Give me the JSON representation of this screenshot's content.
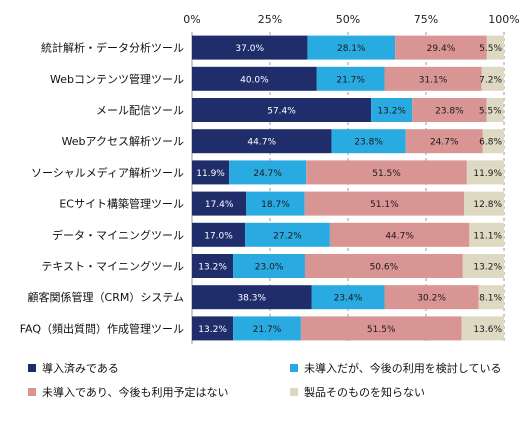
{
  "chart_data": {
    "type": "bar",
    "orientation": "horizontal",
    "stacked": true,
    "percent_stacked": true,
    "xlim": [
      0,
      100
    ],
    "x_ticks": [
      "0%",
      "25%",
      "50%",
      "75%",
      "100%"
    ],
    "x_tick_values": [
      0,
      25,
      50,
      75,
      100
    ],
    "grid": "dashed vertical",
    "legend_position": "bottom",
    "categories": [
      "統計解析・データ分析ツール",
      "Webコンテンツ管理ツール",
      "メール配信ツール",
      "Webアクセス解析ツール",
      "ソーシャルメディア解析ツール",
      "ECサイト構築管理ツール",
      "データ・マイニングツール",
      "テキスト・マイニングツール",
      "顧客関係管理（CRM）システム",
      "FAQ（頻出質問）作成管理ツール"
    ],
    "series": [
      {
        "name": "導入済みである",
        "color": "#1f2d6b",
        "text_color": "#ffffff",
        "values": [
          37.0,
          40.0,
          57.4,
          44.7,
          11.9,
          17.4,
          17.0,
          13.2,
          38.3,
          13.2
        ],
        "labels": [
          "37.0%",
          "40.0%",
          "57.4%",
          "44.7%",
          "11.9%",
          "17.4%",
          "17.0%",
          "13.2%",
          "38.3%",
          "13.2%"
        ]
      },
      {
        "name": "未導入だが、今後の利用を検討している",
        "color": "#29abe2",
        "text_color": "#1a1a1a",
        "values": [
          28.1,
          21.7,
          13.2,
          23.8,
          24.7,
          18.7,
          27.2,
          23.0,
          23.4,
          21.7
        ],
        "labels": [
          "28.1%",
          "21.7%",
          "13.2%",
          "23.8%",
          "24.7%",
          "18.7%",
          "27.2%",
          "23.0%",
          "23.4%",
          "21.7%"
        ]
      },
      {
        "name": "未導入であり、今後も利用予定はない",
        "color": "#d99594",
        "text_color": "#1a1a1a",
        "values": [
          29.4,
          31.1,
          23.8,
          24.7,
          51.5,
          51.1,
          44.7,
          50.6,
          30.2,
          51.5
        ],
        "labels": [
          "29.4%",
          "31.1%",
          "23.8%",
          "24.7%",
          "51.5%",
          "51.1%",
          "44.7%",
          "50.6%",
          "30.2%",
          "51.5%"
        ]
      },
      {
        "name": "製品そのものを知らない",
        "color": "#ddd9c3",
        "text_color": "#1a1a1a",
        "values": [
          5.5,
          7.2,
          5.5,
          6.8,
          11.9,
          12.8,
          11.1,
          13.2,
          8.1,
          13.6
        ],
        "labels": [
          "5.5%",
          "7.2%",
          "5.5%",
          "6.8%",
          "11.9%",
          "12.8%",
          "11.1%",
          "13.2%",
          "8.1%",
          "13.6%"
        ]
      }
    ]
  }
}
